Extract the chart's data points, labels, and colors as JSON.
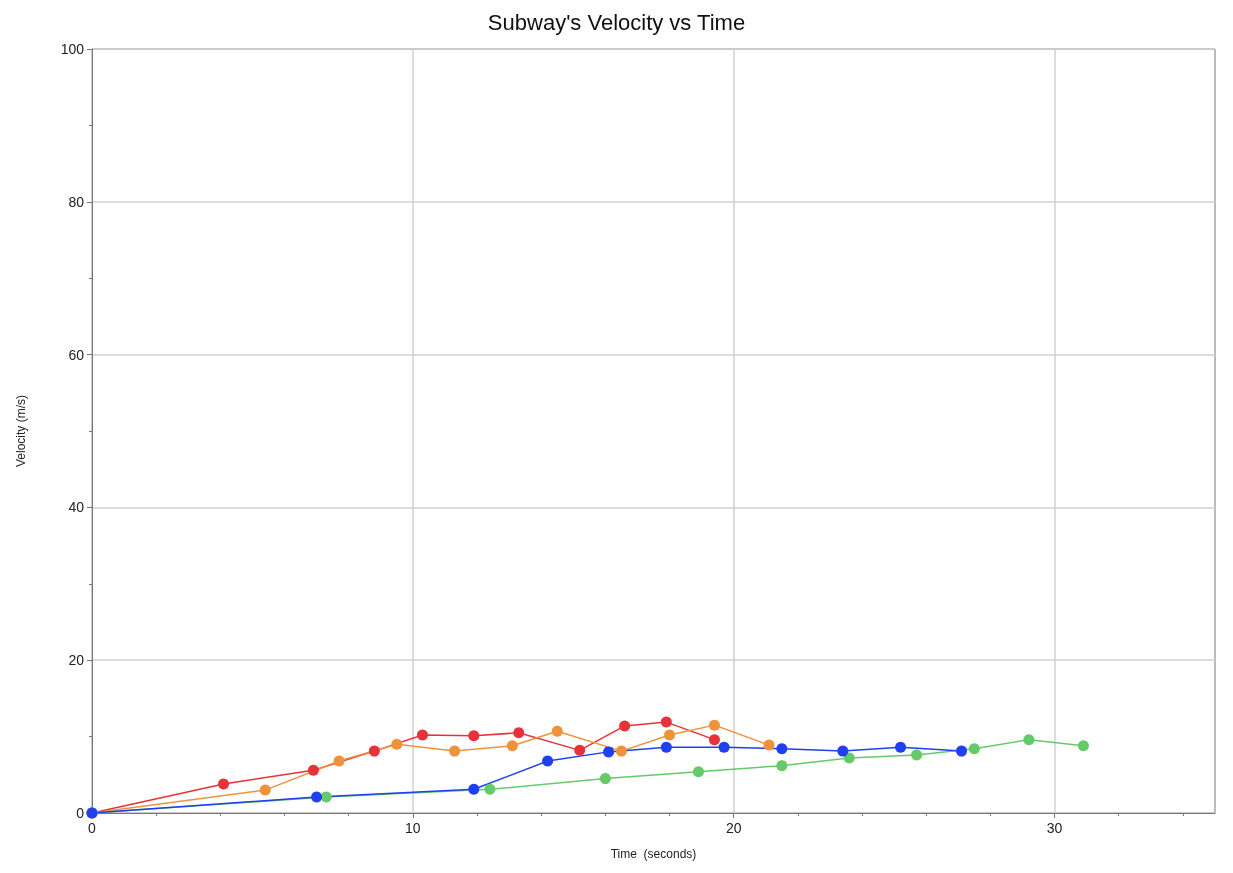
{
  "chart_data": {
    "type": "line",
    "title": "Subway's Velocity vs Time",
    "xlabel": "Time  (seconds)",
    "ylabel": "Velocity (m/s)",
    "xlim": [
      0,
      35
    ],
    "xticks": [
      0,
      10,
      20,
      30
    ],
    "ylim": [
      0,
      100
    ],
    "yticks": [
      0,
      20,
      40,
      60,
      80,
      100
    ],
    "grid": true,
    "marker": "circle",
    "line_style": "solid",
    "series": [
      {
        "color": "#e8323a",
        "x": [
          0,
          4.1,
          6.9,
          8.8,
          10.3,
          11.9,
          13.3,
          15.2,
          16.6,
          17.9,
          19.4
        ],
        "values": [
          0,
          3.8,
          5.6,
          8.1,
          10.2,
          10.1,
          10.5,
          8.2,
          11.4,
          11.9,
          9.6
        ]
      },
      {
        "color": "#f0923a",
        "x": [
          0,
          5.4,
          7.7,
          9.5,
          11.3,
          13.1,
          14.5,
          16.5,
          18.0,
          19.4,
          21.1
        ],
        "values": [
          0,
          3.0,
          6.8,
          9.0,
          8.1,
          8.8,
          10.7,
          8.1,
          10.2,
          11.5,
          8.9
        ]
      },
      {
        "color": "#66c96a",
        "x": [
          0,
          7.3,
          12.4,
          16.0,
          18.9,
          21.5,
          23.6,
          25.7,
          27.5,
          29.2,
          30.9
        ],
        "values": [
          0,
          2.1,
          3.1,
          4.5,
          5.4,
          6.2,
          7.2,
          7.6,
          8.4,
          9.6,
          8.8
        ]
      },
      {
        "color": "#1f3ff0",
        "x": [
          0,
          7.0,
          11.9,
          14.2,
          16.1,
          17.9,
          19.7,
          21.5,
          23.4,
          25.2,
          27.1
        ],
        "values": [
          0,
          2.1,
          3.1,
          6.8,
          8.0,
          8.6,
          8.6,
          8.4,
          8.1,
          8.6,
          8.1
        ]
      }
    ]
  }
}
